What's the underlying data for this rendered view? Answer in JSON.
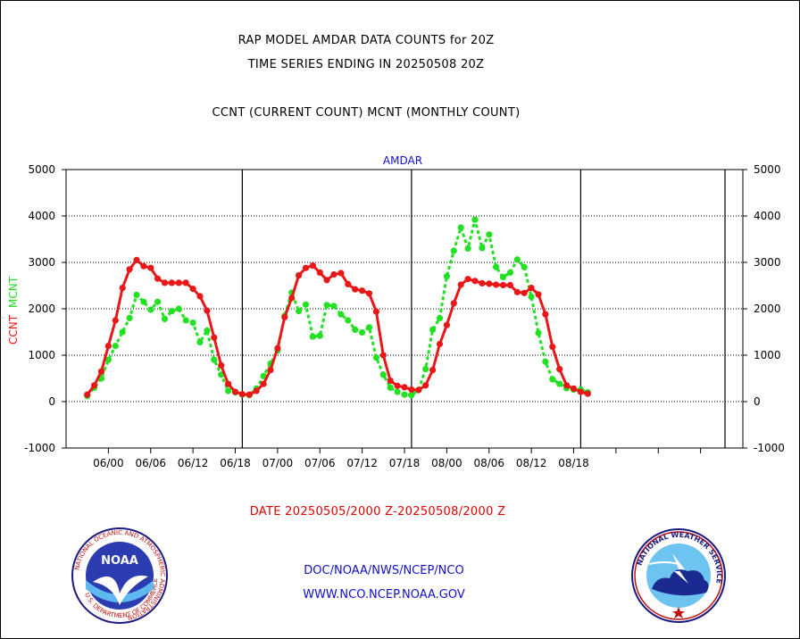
{
  "header": {
    "title_line1": "RAP MODEL AMDAR DATA COUNTS for 20Z",
    "title_line2": "TIME SERIES ENDING IN 20250508 20Z",
    "subtitle": "CCNT (CURRENT COUNT) MCNT (MONTHLY COUNT)"
  },
  "footer": {
    "date_range": "DATE 20250505/2000 Z-20250508/2000 Z",
    "org_path": "DOC/NOAA/NWS/NCEP/NCO",
    "website": "WWW.NCO.NCEP.NOAA.GOV",
    "noaa_logo_text": "NOAA",
    "noaa_ring_text": "NATIONAL OCEANIC AND ATMOSPHERIC ADMINISTRATION",
    "noaa_ring_bottom": "U.S. DEPARTMENT OF COMMERCE",
    "nws_ring_text": "NATIONAL WEATHER SERVICE"
  },
  "colors": {
    "ccnt": "#e81818",
    "mcnt": "#22e022",
    "axis_title": "#1010cc"
  },
  "chart_data": {
    "type": "line",
    "title": "AMDAR",
    "ylabel_ccnt": "CCNT",
    "ylabel_mcnt": "MCNT",
    "ylim": [
      -1000,
      5000
    ],
    "yticks": [
      -1000,
      0,
      1000,
      2000,
      3000,
      4000,
      5000
    ],
    "ytick_labels": [
      "-1000",
      "0",
      "1000",
      "2000",
      "3000",
      "4000",
      "5000"
    ],
    "xlim": [
      -3,
      93
    ],
    "xticks": [
      3,
      9,
      15,
      21,
      27,
      33,
      39,
      45,
      51,
      57,
      63,
      69,
      75,
      81,
      87
    ],
    "xtick_labels": [
      "06/00",
      "06/06",
      "06/12",
      "06/18",
      "07/00",
      "07/06",
      "07/12",
      "07/18",
      "08/00",
      "08/06",
      "08/12",
      "08/18",
      "",
      "",
      ""
    ],
    "day_separators": [
      22,
      46,
      70
    ],
    "grid": true,
    "series": [
      {
        "name": "CCNT",
        "color": "#e81818",
        "x": [
          0,
          1,
          2,
          3,
          4,
          5,
          6,
          7,
          8,
          9,
          10,
          11,
          12,
          13,
          14,
          15,
          16,
          17,
          18,
          19,
          20,
          21,
          22,
          23,
          24,
          25,
          26,
          27,
          28,
          29,
          30,
          31,
          32,
          33,
          34,
          35,
          36,
          37,
          38,
          39,
          40,
          41,
          42,
          43,
          44,
          45,
          46,
          47,
          48,
          49,
          50,
          51,
          52,
          53,
          54,
          55,
          56,
          57,
          58,
          59,
          60,
          61,
          62,
          63,
          64,
          65,
          66,
          67,
          68,
          69,
          70,
          71
        ],
        "values": [
          150,
          350,
          650,
          1200,
          1750,
          2450,
          2850,
          3050,
          2920,
          2880,
          2650,
          2560,
          2560,
          2560,
          2560,
          2430,
          2270,
          1960,
          1380,
          780,
          380,
          210,
          160,
          150,
          230,
          380,
          680,
          1150,
          1820,
          2230,
          2720,
          2880,
          2930,
          2780,
          2620,
          2740,
          2770,
          2530,
          2420,
          2390,
          2330,
          1940,
          1000,
          450,
          340,
          310,
          260,
          250,
          350,
          680,
          1240,
          1650,
          2120,
          2520,
          2640,
          2600,
          2550,
          2540,
          2520,
          2510,
          2510,
          2360,
          2340,
          2450,
          2310,
          1880,
          1180,
          700,
          350,
          280,
          210,
          170
        ]
      },
      {
        "name": "MCNT",
        "color": "#22e022",
        "x": [
          0,
          1,
          2,
          3,
          4,
          5,
          6,
          7,
          8,
          9,
          10,
          11,
          12,
          13,
          14,
          15,
          16,
          17,
          18,
          19,
          20,
          21,
          22,
          23,
          24,
          25,
          26,
          27,
          28,
          29,
          30,
          31,
          32,
          33,
          34,
          35,
          36,
          37,
          38,
          39,
          40,
          41,
          42,
          43,
          44,
          45,
          46,
          47,
          48,
          49,
          50,
          51,
          52,
          53,
          54,
          55,
          56,
          57,
          58,
          59,
          60,
          61,
          62,
          63,
          64,
          65,
          66,
          67,
          68,
          69,
          70,
          71
        ],
        "values": [
          120,
          300,
          500,
          900,
          1200,
          1500,
          1800,
          2300,
          2150,
          1980,
          2150,
          1780,
          1950,
          2000,
          1750,
          1700,
          1280,
          1530,
          900,
          580,
          230,
          200,
          150,
          140,
          280,
          550,
          820,
          1100,
          1850,
          2350,
          1950,
          2090,
          1400,
          1420,
          2080,
          2060,
          1880,
          1750,
          1550,
          1490,
          1600,
          950,
          580,
          300,
          210,
          150,
          140,
          250,
          700,
          1550,
          1800,
          2700,
          3250,
          3750,
          3300,
          3920,
          3310,
          3600,
          2900,
          2680,
          2780,
          3060,
          2900,
          2260,
          1480,
          860,
          480,
          380,
          290,
          260,
          260,
          200
        ]
      }
    ]
  }
}
